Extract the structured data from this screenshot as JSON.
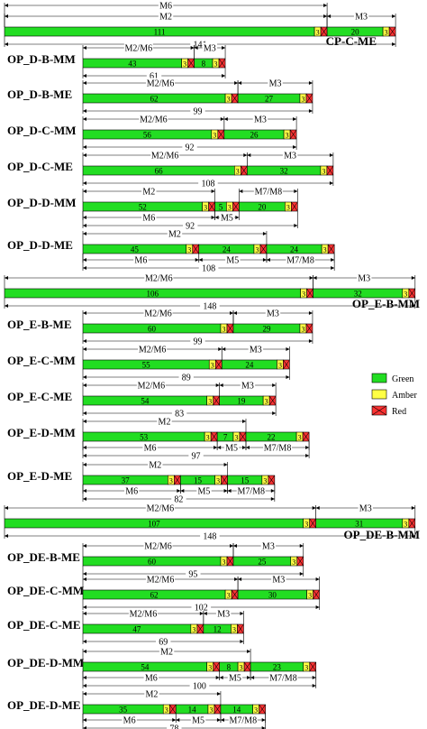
{
  "colors": {
    "green": "#22dd22",
    "amber": "#ffff44",
    "red": "#ff3333"
  },
  "legend": [
    {
      "label": "Green",
      "color": "green"
    },
    {
      "label": "Amber",
      "color": "amber"
    },
    {
      "label": "Red",
      "color": "red"
    }
  ],
  "diagrams": [
    {
      "name": "CP-C-ME",
      "segments": [
        {
          "c": "g",
          "v": "111"
        },
        {
          "c": "a",
          "v": "3"
        },
        {
          "c": "r"
        },
        {
          "c": "g",
          "v": "20"
        },
        {
          "c": "a",
          "v": "3"
        },
        {
          "c": "r"
        }
      ],
      "total": "141",
      "top_dims": [
        {
          "label": "M6",
          "a": 0,
          "b": 2,
          "row": 0
        },
        {
          "label": "M2",
          "a": 0,
          "b": 2,
          "row": 1
        },
        {
          "label": "M3",
          "a": 3,
          "b": 5,
          "row": 1
        }
      ],
      "bottom_dims": []
    },
    {
      "name": "OP_D-B-MM",
      "segments": [
        {
          "c": "g",
          "v": "43"
        },
        {
          "c": "a",
          "v": "3"
        },
        {
          "c": "r"
        },
        {
          "c": "g",
          "v": "8"
        },
        {
          "c": "a",
          "v": "3"
        },
        {
          "c": "r"
        }
      ],
      "total": "61",
      "top_dims": [
        {
          "label": "M2/M6",
          "a": 0,
          "b": 2,
          "row": 0
        },
        {
          "label": "M3",
          "a": 3,
          "b": 5,
          "row": 0
        }
      ],
      "bottom_dims": []
    },
    {
      "name": "OP_D-B-ME",
      "segments": [
        {
          "c": "g",
          "v": "62"
        },
        {
          "c": "a",
          "v": "3"
        },
        {
          "c": "r"
        },
        {
          "c": "g",
          "v": "27"
        },
        {
          "c": "a",
          "v": "3"
        },
        {
          "c": "r"
        }
      ],
      "total": "99",
      "top_dims": [
        {
          "label": "M2/M6",
          "a": 0,
          "b": 2,
          "row": 0
        },
        {
          "label": "M3",
          "a": 3,
          "b": 5,
          "row": 0
        }
      ],
      "bottom_dims": []
    },
    {
      "name": "OP_D-C-MM",
      "segments": [
        {
          "c": "g",
          "v": "56"
        },
        {
          "c": "a",
          "v": "3"
        },
        {
          "c": "r"
        },
        {
          "c": "g",
          "v": "26"
        },
        {
          "c": "a",
          "v": "3"
        },
        {
          "c": "r"
        }
      ],
      "total": "92",
      "top_dims": [
        {
          "label": "M2/M6",
          "a": 0,
          "b": 2,
          "row": 0
        },
        {
          "label": "M3",
          "a": 3,
          "b": 5,
          "row": 0
        }
      ],
      "bottom_dims": []
    },
    {
      "name": "OP_D-C-ME",
      "segments": [
        {
          "c": "g",
          "v": "66"
        },
        {
          "c": "a",
          "v": "3"
        },
        {
          "c": "r"
        },
        {
          "c": "g",
          "v": "32"
        },
        {
          "c": "a",
          "v": "3"
        },
        {
          "c": "r"
        }
      ],
      "total": "108",
      "top_dims": [
        {
          "label": "M2/M6",
          "a": 0,
          "b": 2,
          "row": 0
        },
        {
          "label": "M3",
          "a": 3,
          "b": 5,
          "row": 0
        }
      ],
      "bottom_dims": []
    },
    {
      "name": "OP_D-D-MM",
      "segments": [
        {
          "c": "g",
          "v": "52"
        },
        {
          "c": "a",
          "v": "3"
        },
        {
          "c": "r"
        },
        {
          "c": "g",
          "v": "5"
        },
        {
          "c": "a",
          "v": "3"
        },
        {
          "c": "r"
        },
        {
          "c": "g",
          "v": "20"
        },
        {
          "c": "a",
          "v": "3"
        },
        {
          "c": "r"
        }
      ],
      "total": "92",
      "top_dims": [
        {
          "label": "M2",
          "a": 0,
          "b": 2,
          "row": 0
        },
        {
          "label": "M7/M8",
          "a": 6,
          "b": 8,
          "row": 0
        }
      ],
      "bottom_dims": [
        {
          "label": "M6",
          "a": 0,
          "b": 2,
          "row": 0
        },
        {
          "label": "M5",
          "a": 3,
          "b": 5,
          "row": 0
        }
      ]
    },
    {
      "name": "OP_D-D-ME",
      "segments": [
        {
          "c": "g",
          "v": "45"
        },
        {
          "c": "a",
          "v": "3"
        },
        {
          "c": "r"
        },
        {
          "c": "g",
          "v": "24"
        },
        {
          "c": "a",
          "v": "3"
        },
        {
          "c": "r"
        },
        {
          "c": "g",
          "v": "24"
        },
        {
          "c": "a",
          "v": "3"
        },
        {
          "c": "r"
        }
      ],
      "total": "108",
      "top_dims": [
        {
          "label": "M2",
          "a": 0,
          "b": 5,
          "row": 0
        }
      ],
      "bottom_dims": [
        {
          "label": "M6",
          "a": 0,
          "b": 2,
          "row": 0
        },
        {
          "label": "M5",
          "a": 3,
          "b": 5,
          "row": 0
        },
        {
          "label": "M7/M8",
          "a": 6,
          "b": 8,
          "row": 0
        }
      ]
    },
    {
      "name": "OP_E-B-MM",
      "segments": [
        {
          "c": "g",
          "v": "106"
        },
        {
          "c": "a",
          "v": "3"
        },
        {
          "c": "r"
        },
        {
          "c": "g",
          "v": "32"
        },
        {
          "c": "a",
          "v": "3"
        },
        {
          "c": "r"
        }
      ],
      "total": "148",
      "top_dims": [
        {
          "label": "M2/M6",
          "a": 0,
          "b": 2,
          "row": 0
        },
        {
          "label": "M3",
          "a": 3,
          "b": 5,
          "row": 0
        }
      ],
      "bottom_dims": []
    },
    {
      "name": "OP_E-B-ME",
      "segments": [
        {
          "c": "g",
          "v": "60"
        },
        {
          "c": "a",
          "v": "3"
        },
        {
          "c": "r"
        },
        {
          "c": "g",
          "v": "29"
        },
        {
          "c": "a",
          "v": "3"
        },
        {
          "c": "r"
        }
      ],
      "total": "99",
      "top_dims": [
        {
          "label": "M2/M6",
          "a": 0,
          "b": 2,
          "row": 0
        },
        {
          "label": "M3",
          "a": 3,
          "b": 5,
          "row": 0
        }
      ],
      "bottom_dims": []
    },
    {
      "name": "OP_E-C-MM",
      "segments": [
        {
          "c": "g",
          "v": "55"
        },
        {
          "c": "a",
          "v": "3"
        },
        {
          "c": "r"
        },
        {
          "c": "g",
          "v": "24"
        },
        {
          "c": "a",
          "v": "3"
        },
        {
          "c": "r"
        }
      ],
      "total": "89",
      "top_dims": [
        {
          "label": "M2/M6",
          "a": 0,
          "b": 2,
          "row": 0
        },
        {
          "label": "M3",
          "a": 3,
          "b": 5,
          "row": 0
        }
      ],
      "bottom_dims": []
    },
    {
      "name": "OP_E-C-ME",
      "segments": [
        {
          "c": "g",
          "v": "54"
        },
        {
          "c": "a",
          "v": "3"
        },
        {
          "c": "r"
        },
        {
          "c": "g",
          "v": "19"
        },
        {
          "c": "a",
          "v": "3"
        },
        {
          "c": "r"
        }
      ],
      "total": "83",
      "top_dims": [
        {
          "label": "M2/M6",
          "a": 0,
          "b": 2,
          "row": 0
        },
        {
          "label": "M3",
          "a": 3,
          "b": 5,
          "row": 0
        }
      ],
      "bottom_dims": []
    },
    {
      "name": "OP_E-D-MM",
      "segments": [
        {
          "c": "g",
          "v": "53"
        },
        {
          "c": "a",
          "v": "3"
        },
        {
          "c": "r"
        },
        {
          "c": "g",
          "v": "7"
        },
        {
          "c": "a",
          "v": "3"
        },
        {
          "c": "r"
        },
        {
          "c": "g",
          "v": "22"
        },
        {
          "c": "a",
          "v": "3"
        },
        {
          "c": "r"
        }
      ],
      "total": "97",
      "top_dims": [
        {
          "label": "M2",
          "a": 0,
          "b": 5,
          "row": 0
        }
      ],
      "bottom_dims": [
        {
          "label": "M6",
          "a": 0,
          "b": 2,
          "row": 0
        },
        {
          "label": "M5",
          "a": 3,
          "b": 5,
          "row": 0
        },
        {
          "label": "M7/M8",
          "a": 6,
          "b": 8,
          "row": 0
        }
      ]
    },
    {
      "name": "OP_E-D-ME",
      "segments": [
        {
          "c": "g",
          "v": "37"
        },
        {
          "c": "a",
          "v": "3"
        },
        {
          "c": "r"
        },
        {
          "c": "g",
          "v": "15"
        },
        {
          "c": "a",
          "v": "3"
        },
        {
          "c": "r"
        },
        {
          "c": "g",
          "v": "15"
        },
        {
          "c": "a",
          "v": "3"
        },
        {
          "c": "r"
        }
      ],
      "total": "82",
      "top_dims": [
        {
          "label": "M2",
          "a": 0,
          "b": 5,
          "row": 0
        }
      ],
      "bottom_dims": [
        {
          "label": "M6",
          "a": 0,
          "b": 2,
          "row": 0
        },
        {
          "label": "M5",
          "a": 3,
          "b": 5,
          "row": 0
        },
        {
          "label": "M7/M8",
          "a": 6,
          "b": 8,
          "row": 0
        }
      ]
    },
    {
      "name": "OP_DE-B-MM",
      "segments": [
        {
          "c": "g",
          "v": "107"
        },
        {
          "c": "a",
          "v": "3"
        },
        {
          "c": "r"
        },
        {
          "c": "g",
          "v": "31"
        },
        {
          "c": "a",
          "v": "3"
        },
        {
          "c": "r"
        }
      ],
      "total": "148",
      "top_dims": [
        {
          "label": "M2/M6",
          "a": 0,
          "b": 2,
          "row": 0
        },
        {
          "label": "M3",
          "a": 3,
          "b": 5,
          "row": 0
        }
      ],
      "bottom_dims": []
    },
    {
      "name": "OP_DE-B-ME",
      "segments": [
        {
          "c": "g",
          "v": "60"
        },
        {
          "c": "a",
          "v": "3"
        },
        {
          "c": "r"
        },
        {
          "c": "g",
          "v": "25"
        },
        {
          "c": "a",
          "v": "3"
        },
        {
          "c": "r"
        }
      ],
      "total": "95",
      "top_dims": [
        {
          "label": "M2/M6",
          "a": 0,
          "b": 2,
          "row": 0
        },
        {
          "label": "M3",
          "a": 3,
          "b": 5,
          "row": 0
        }
      ],
      "bottom_dims": []
    },
    {
      "name": "OP_DE-C-MM",
      "segments": [
        {
          "c": "g",
          "v": "62"
        },
        {
          "c": "a",
          "v": "3"
        },
        {
          "c": "r"
        },
        {
          "c": "g",
          "v": "30"
        },
        {
          "c": "a",
          "v": "3"
        },
        {
          "c": "r"
        }
      ],
      "total": "102",
      "top_dims": [
        {
          "label": "M2/M6",
          "a": 0,
          "b": 2,
          "row": 0
        },
        {
          "label": "M3",
          "a": 3,
          "b": 5,
          "row": 0
        }
      ],
      "bottom_dims": []
    },
    {
      "name": "OP_DE-C-ME",
      "segments": [
        {
          "c": "g",
          "v": "47"
        },
        {
          "c": "a",
          "v": "3"
        },
        {
          "c": "r"
        },
        {
          "c": "g",
          "v": "12"
        },
        {
          "c": "a",
          "v": "3"
        },
        {
          "c": "r"
        }
      ],
      "total": "69",
      "top_dims": [
        {
          "label": "M2/M6",
          "a": 0,
          "b": 2,
          "row": 0
        },
        {
          "label": "M3",
          "a": 3,
          "b": 5,
          "row": 0
        }
      ],
      "bottom_dims": []
    },
    {
      "name": "OP_DE-D-MM",
      "segments": [
        {
          "c": "g",
          "v": "54"
        },
        {
          "c": "a",
          "v": "3"
        },
        {
          "c": "r"
        },
        {
          "c": "g",
          "v": "8"
        },
        {
          "c": "a",
          "v": "3"
        },
        {
          "c": "r"
        },
        {
          "c": "g",
          "v": "23"
        },
        {
          "c": "a",
          "v": "3"
        },
        {
          "c": "r"
        }
      ],
      "total": "100",
      "top_dims": [
        {
          "label": "M2",
          "a": 0,
          "b": 5,
          "row": 0
        }
      ],
      "bottom_dims": [
        {
          "label": "M6",
          "a": 0,
          "b": 2,
          "row": 0
        },
        {
          "label": "M5",
          "a": 3,
          "b": 5,
          "row": 0
        },
        {
          "label": "M7/M8",
          "a": 6,
          "b": 8,
          "row": 0
        }
      ]
    },
    {
      "name": "OP_DE-D-ME",
      "segments": [
        {
          "c": "g",
          "v": "35"
        },
        {
          "c": "a",
          "v": "3"
        },
        {
          "c": "r"
        },
        {
          "c": "g",
          "v": "14"
        },
        {
          "c": "a",
          "v": "3"
        },
        {
          "c": "r"
        },
        {
          "c": "g",
          "v": "14"
        },
        {
          "c": "a",
          "v": "3"
        },
        {
          "c": "r"
        }
      ],
      "total": "78",
      "top_dims": [
        {
          "label": "M2",
          "a": 0,
          "b": 5,
          "row": 0
        }
      ],
      "bottom_dims": [
        {
          "label": "M6",
          "a": 0,
          "b": 2,
          "row": 0
        },
        {
          "label": "M5",
          "a": 3,
          "b": 5,
          "row": 0
        },
        {
          "label": "M7/M8",
          "a": 6,
          "b": 8,
          "row": 0
        }
      ]
    }
  ]
}
